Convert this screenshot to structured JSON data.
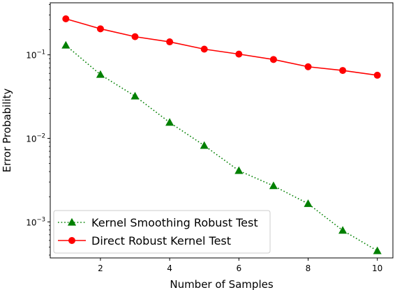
{
  "chart_data": {
    "type": "line",
    "title": "",
    "xlabel": "Number of Samples",
    "ylabel": "Error Probability",
    "yscale": "log",
    "xlim": [
      0.55,
      10.45
    ],
    "ylim": [
      0.00037,
      0.42
    ],
    "x": [
      1,
      2,
      3,
      4,
      5,
      6,
      7,
      8,
      9,
      10
    ],
    "x_ticks": [
      2,
      4,
      6,
      8,
      10
    ],
    "x_tick_labels": [
      "2",
      "4",
      "6",
      "8",
      "10"
    ],
    "y_ticks": [
      0.001,
      0.01,
      0.1
    ],
    "y_tick_labels": [
      {
        "base": "10",
        "exp": "−3"
      },
      {
        "base": "10",
        "exp": "−2"
      },
      {
        "base": "10",
        "exp": "−1"
      }
    ],
    "grid": false,
    "legend_position": "lower-left",
    "series": [
      {
        "name": "Kernel Smoothing Robust Test",
        "color": "#008000",
        "line_style": "dotted",
        "marker": "triangle-up",
        "values": [
          0.13,
          0.058,
          0.032,
          0.0155,
          0.0082,
          0.0041,
          0.0027,
          0.00165,
          0.00079,
          0.00045
        ]
      },
      {
        "name": "Direct Robust Kernel Test",
        "color": "#ff0000",
        "line_style": "solid",
        "marker": "circle",
        "values": [
          0.27,
          0.205,
          0.165,
          0.143,
          0.117,
          0.102,
          0.088,
          0.072,
          0.065,
          0.057
        ]
      }
    ]
  }
}
